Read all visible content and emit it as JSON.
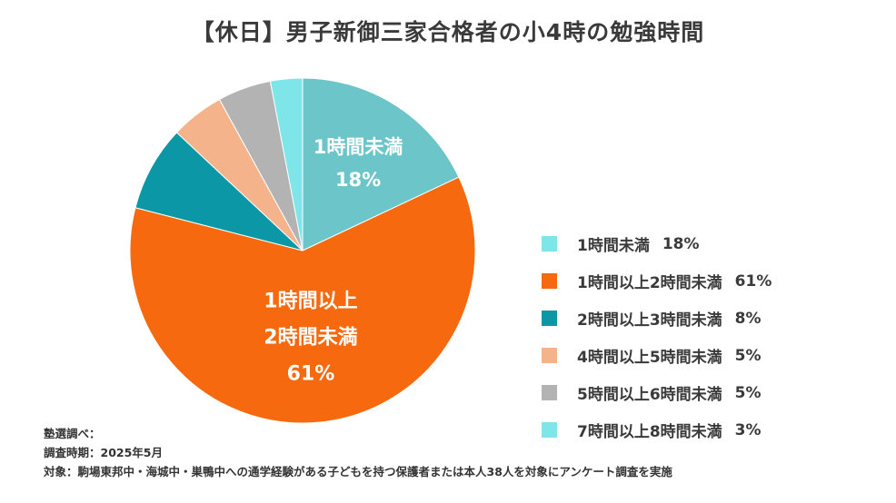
{
  "chart_data": {
    "type": "pie",
    "title": "【休日】男子新御三家合格者の小4時の勉強時間",
    "start": "12 o'clock, clockwise",
    "slices": [
      {
        "label": "1時間未満",
        "value": 18,
        "percent_label": "18%",
        "color": "#6cc5c8",
        "inside_label": [
          "1時間未満",
          "18%"
        ]
      },
      {
        "label": "1時間以上2時間未満",
        "value": 61,
        "percent_label": "61%",
        "color": "#f7690e",
        "inside_label": [
          "1時間以上",
          "2時間未満",
          "61%"
        ]
      },
      {
        "label": "2時間以上3時間未満",
        "value": 8,
        "percent_label": "8%",
        "color": "#0b97a6"
      },
      {
        "label": "4時間以上5時間未満",
        "value": 5,
        "percent_label": "5%",
        "color": "#f5b38b"
      },
      {
        "label": "5時間以上6時間未満",
        "value": 5,
        "percent_label": "5%",
        "color": "#b3b3b3"
      },
      {
        "label": "7時間以上8時間未満",
        "value": 3,
        "percent_label": "3%",
        "color": "#7ee6e9"
      }
    ],
    "legend": [
      {
        "label": "1時間未満",
        "percent_label": "18%",
        "color": "#7ee6e9"
      },
      {
        "label": "1時間以上2時間未満",
        "percent_label": "61%",
        "color": "#f7690e"
      },
      {
        "label": "2時間以上3時間未満",
        "percent_label": "8%",
        "color": "#0b97a6"
      },
      {
        "label": "4時間以上5時間未満",
        "percent_label": "5%",
        "color": "#f5b38b"
      },
      {
        "label": "5時間以上6時間未満",
        "percent_label": "5%",
        "color": "#b3b3b3"
      },
      {
        "label": "7時間以上8時間未満",
        "percent_label": "3%",
        "color": "#7ee6e9"
      }
    ],
    "legend_position": "right"
  },
  "footnote": {
    "source": "塾選調べ：",
    "period": "調査時期：2025年5月",
    "subjects": "対象：駒場東邦中・海城中・巣鴨中への通学経験がある子どもを持つ保護者または本人38人を対象にアンケート調査を実施"
  }
}
